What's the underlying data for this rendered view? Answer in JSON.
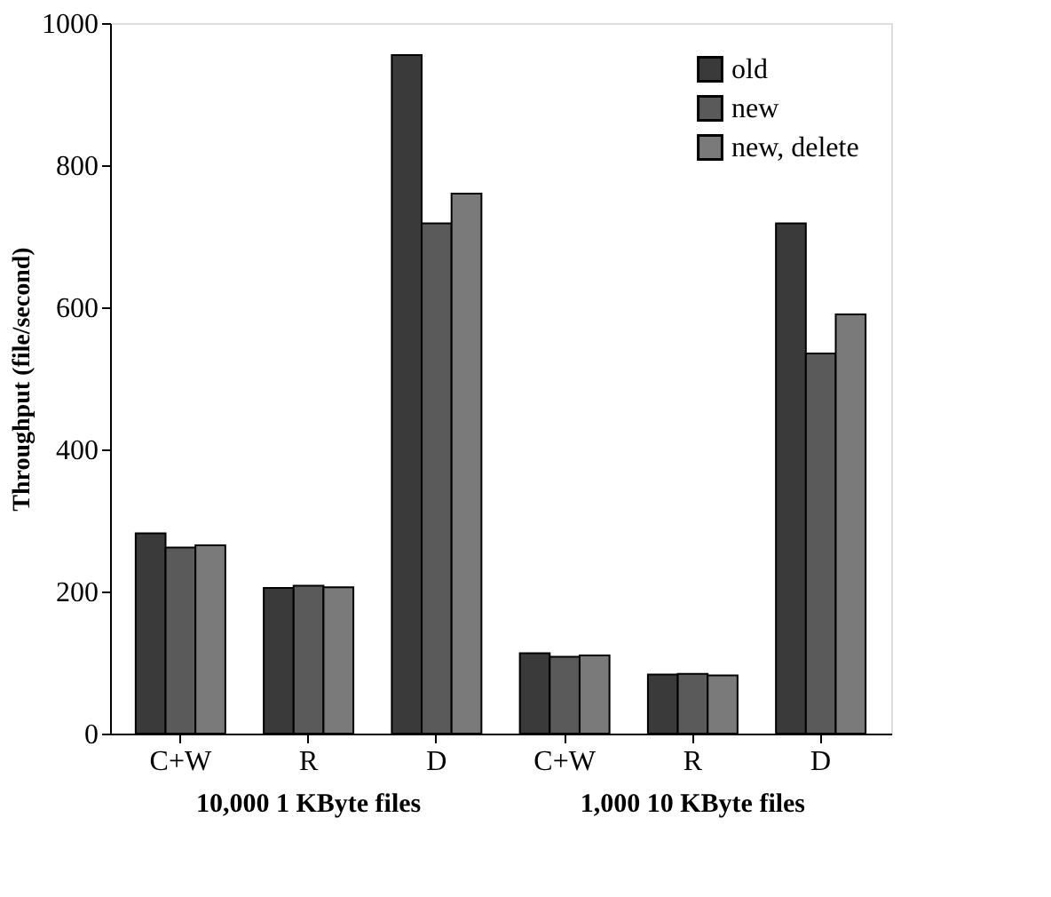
{
  "chart_data": {
    "type": "bar",
    "ylabel": "Throughput (file/second)",
    "categories": [
      "C+W",
      "R",
      "D",
      "C+W",
      "R",
      "D"
    ],
    "series": [
      {
        "name": "old",
        "color": "#3a3a3a",
        "values": [
          282,
          205,
          955,
          113,
          83,
          718
        ]
      },
      {
        "name": "new",
        "color": "#5a5a5a",
        "values": [
          262,
          208,
          718,
          108,
          84,
          535
        ]
      },
      {
        "name": "new, delete",
        "color": "#7a7a7a",
        "values": [
          265,
          206,
          760,
          110,
          82,
          590
        ]
      }
    ],
    "ylim": [
      0,
      1000
    ],
    "yticks": [
      0,
      200,
      400,
      600,
      800,
      1000
    ],
    "grid": false,
    "legend": "top right",
    "annotations": [
      "10,000 1 KByte files",
      "1,000 10 KByte files"
    ]
  }
}
